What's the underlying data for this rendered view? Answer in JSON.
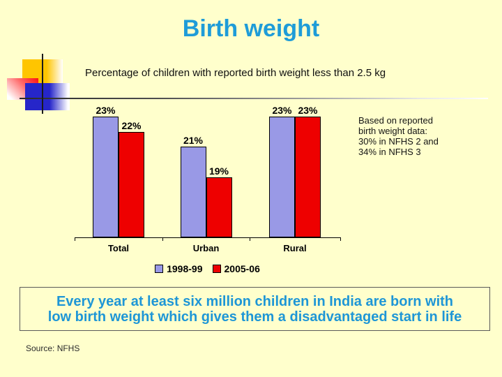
{
  "title": "Birth weight",
  "chart_data": {
    "type": "bar",
    "title": "Percentage of children with reported birth weight less than 2.5 kg",
    "categories": [
      "Total",
      "Urban",
      "Rural"
    ],
    "series": [
      {
        "name": "1998-99",
        "color": "#9999E6",
        "values": [
          23,
          21,
          23
        ]
      },
      {
        "name": "2005-06",
        "color": "#EE0000",
        "values": [
          22,
          19,
          23
        ]
      }
    ],
    "value_suffix": "%",
    "ylim": [
      15,
      24
    ],
    "grid": false,
    "legend_position": "bottom",
    "bar_outline_color": "#000000"
  },
  "annotation": {
    "text": "Based on reported\nbirth weight data:\n30% in NFHS 2 and\n34% in NFHS 3"
  },
  "callout": {
    "text": "Every year at least six million children in India are born with\nlow birth weight which gives them a disadvantaged start in life"
  },
  "source": "Source: NFHS",
  "colors": {
    "background": "#FFFFCC",
    "title_blue": "#1E9CD8",
    "callout_blue": "#1E96D6"
  }
}
